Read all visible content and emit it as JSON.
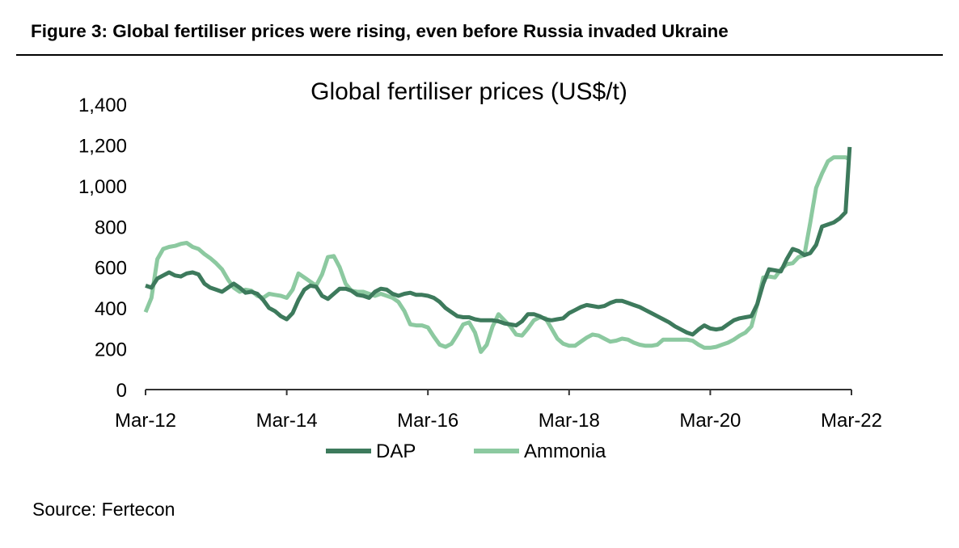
{
  "figure": {
    "title": "Figure 3: Global fertiliser prices were rising, even before Russia invaded Ukraine",
    "source": "Source: Fertecon"
  },
  "chart_data": {
    "type": "line",
    "title": "Global fertiliser prices (US$/t)",
    "xlabel": "",
    "ylabel": "",
    "x_unit": "months since Mar-12",
    "x_range": [
      0,
      120
    ],
    "ylim": [
      0,
      1400
    ],
    "y_ticks": [
      0,
      200,
      400,
      600,
      800,
      1000,
      1200,
      1400
    ],
    "y_tick_labels": [
      "0",
      "200",
      "400",
      "600",
      "800",
      "1,000",
      "1,200",
      "1,400"
    ],
    "x_ticks": [
      0,
      24,
      48,
      72,
      96,
      120
    ],
    "x_tick_labels": [
      "Mar-12",
      "Mar-14",
      "Mar-16",
      "Mar-18",
      "Mar-20",
      "Mar-22"
    ],
    "grid": false,
    "legend_position": "bottom",
    "series": [
      {
        "name": "DAP",
        "color": "#3d7a5c",
        "points": [
          [
            0,
            510
          ],
          [
            1,
            500
          ],
          [
            2,
            545
          ],
          [
            3,
            560
          ],
          [
            4,
            575
          ],
          [
            5,
            560
          ],
          [
            6,
            555
          ],
          [
            7,
            570
          ],
          [
            8,
            575
          ],
          [
            9,
            565
          ],
          [
            10,
            520
          ],
          [
            11,
            500
          ],
          [
            12,
            490
          ],
          [
            13,
            480
          ],
          [
            14,
            500
          ],
          [
            15,
            520
          ],
          [
            16,
            500
          ],
          [
            17,
            475
          ],
          [
            18,
            480
          ],
          [
            19,
            470
          ],
          [
            20,
            440
          ],
          [
            21,
            400
          ],
          [
            22,
            385
          ],
          [
            23,
            360
          ],
          [
            24,
            345
          ],
          [
            25,
            375
          ],
          [
            26,
            440
          ],
          [
            27,
            490
          ],
          [
            28,
            510
          ],
          [
            29,
            505
          ],
          [
            30,
            460
          ],
          [
            31,
            445
          ],
          [
            32,
            470
          ],
          [
            33,
            495
          ],
          [
            34,
            495
          ],
          [
            35,
            485
          ],
          [
            36,
            465
          ],
          [
            37,
            460
          ],
          [
            38,
            450
          ],
          [
            39,
            480
          ],
          [
            40,
            495
          ],
          [
            41,
            490
          ],
          [
            42,
            470
          ],
          [
            43,
            460
          ],
          [
            44,
            470
          ],
          [
            45,
            475
          ],
          [
            46,
            465
          ],
          [
            47,
            465
          ],
          [
            48,
            460
          ],
          [
            49,
            450
          ],
          [
            50,
            430
          ],
          [
            51,
            400
          ],
          [
            52,
            380
          ],
          [
            53,
            360
          ],
          [
            54,
            355
          ],
          [
            55,
            355
          ],
          [
            56,
            345
          ],
          [
            57,
            340
          ],
          [
            58,
            340
          ],
          [
            59,
            340
          ],
          [
            60,
            335
          ],
          [
            61,
            325
          ],
          [
            62,
            320
          ],
          [
            63,
            315
          ],
          [
            64,
            335
          ],
          [
            65,
            370
          ],
          [
            66,
            370
          ],
          [
            67,
            360
          ],
          [
            68,
            345
          ],
          [
            69,
            340
          ],
          [
            70,
            345
          ],
          [
            71,
            350
          ],
          [
            72,
            375
          ],
          [
            73,
            390
          ],
          [
            74,
            405
          ],
          [
            75,
            415
          ],
          [
            76,
            410
          ],
          [
            77,
            405
          ],
          [
            78,
            410
          ],
          [
            79,
            425
          ],
          [
            80,
            435
          ],
          [
            81,
            435
          ],
          [
            82,
            425
          ],
          [
            83,
            415
          ],
          [
            84,
            405
          ],
          [
            85,
            390
          ],
          [
            86,
            375
          ],
          [
            87,
            360
          ],
          [
            88,
            345
          ],
          [
            89,
            330
          ],
          [
            90,
            310
          ],
          [
            91,
            295
          ],
          [
            92,
            280
          ],
          [
            93,
            270
          ],
          [
            94,
            295
          ],
          [
            95,
            315
          ],
          [
            96,
            300
          ],
          [
            97,
            295
          ],
          [
            98,
            300
          ],
          [
            99,
            320
          ],
          [
            100,
            340
          ],
          [
            101,
            350
          ],
          [
            102,
            355
          ],
          [
            103,
            360
          ],
          [
            104,
            420
          ],
          [
            105,
            520
          ],
          [
            106,
            590
          ],
          [
            107,
            585
          ],
          [
            108,
            580
          ],
          [
            109,
            640
          ],
          [
            110,
            690
          ],
          [
            111,
            680
          ],
          [
            112,
            660
          ],
          [
            113,
            670
          ],
          [
            114,
            710
          ],
          [
            115,
            800
          ],
          [
            116,
            810
          ],
          [
            117,
            820
          ],
          [
            118,
            840
          ],
          [
            119,
            870
          ],
          [
            119.7,
            1190
          ]
        ]
      },
      {
        "name": "Ammonia",
        "color": "#8cc9a0",
        "points": [
          [
            0,
            380
          ],
          [
            1,
            450
          ],
          [
            2,
            640
          ],
          [
            3,
            690
          ],
          [
            4,
            700
          ],
          [
            5,
            705
          ],
          [
            6,
            715
          ],
          [
            7,
            720
          ],
          [
            8,
            700
          ],
          [
            9,
            690
          ],
          [
            10,
            665
          ],
          [
            11,
            645
          ],
          [
            12,
            620
          ],
          [
            13,
            590
          ],
          [
            14,
            540
          ],
          [
            15,
            500
          ],
          [
            16,
            480
          ],
          [
            17,
            490
          ],
          [
            18,
            485
          ],
          [
            19,
            460
          ],
          [
            20,
            450
          ],
          [
            21,
            470
          ],
          [
            22,
            465
          ],
          [
            23,
            460
          ],
          [
            24,
            450
          ],
          [
            25,
            490
          ],
          [
            26,
            570
          ],
          [
            27,
            550
          ],
          [
            28,
            530
          ],
          [
            29,
            510
          ],
          [
            30,
            565
          ],
          [
            31,
            650
          ],
          [
            32,
            655
          ],
          [
            33,
            600
          ],
          [
            34,
            520
          ],
          [
            35,
            485
          ],
          [
            36,
            480
          ],
          [
            37,
            480
          ],
          [
            38,
            470
          ],
          [
            39,
            460
          ],
          [
            40,
            470
          ],
          [
            41,
            460
          ],
          [
            42,
            450
          ],
          [
            43,
            430
          ],
          [
            44,
            385
          ],
          [
            45,
            320
          ],
          [
            46,
            315
          ],
          [
            47,
            315
          ],
          [
            48,
            305
          ],
          [
            49,
            260
          ],
          [
            50,
            220
          ],
          [
            51,
            210
          ],
          [
            52,
            225
          ],
          [
            53,
            270
          ],
          [
            54,
            320
          ],
          [
            55,
            330
          ],
          [
            56,
            280
          ],
          [
            57,
            185
          ],
          [
            58,
            220
          ],
          [
            59,
            310
          ],
          [
            60,
            370
          ],
          [
            61,
            340
          ],
          [
            62,
            310
          ],
          [
            63,
            270
          ],
          [
            64,
            265
          ],
          [
            65,
            300
          ],
          [
            66,
            340
          ],
          [
            67,
            355
          ],
          [
            68,
            350
          ],
          [
            69,
            300
          ],
          [
            70,
            250
          ],
          [
            71,
            225
          ],
          [
            72,
            215
          ],
          [
            73,
            215
          ],
          [
            74,
            235
          ],
          [
            75,
            255
          ],
          [
            76,
            270
          ],
          [
            77,
            265
          ],
          [
            78,
            250
          ],
          [
            79,
            235
          ],
          [
            80,
            240
          ],
          [
            81,
            250
          ],
          [
            82,
            245
          ],
          [
            83,
            230
          ],
          [
            84,
            220
          ],
          [
            85,
            215
          ],
          [
            86,
            215
          ],
          [
            87,
            220
          ],
          [
            88,
            245
          ],
          [
            89,
            245
          ],
          [
            90,
            245
          ],
          [
            91,
            245
          ],
          [
            92,
            245
          ],
          [
            93,
            240
          ],
          [
            94,
            220
          ],
          [
            95,
            205
          ],
          [
            96,
            205
          ],
          [
            97,
            210
          ],
          [
            98,
            220
          ],
          [
            99,
            230
          ],
          [
            100,
            245
          ],
          [
            101,
            265
          ],
          [
            102,
            280
          ],
          [
            103,
            310
          ],
          [
            104,
            420
          ],
          [
            105,
            550
          ],
          [
            106,
            555
          ],
          [
            107,
            550
          ],
          [
            108,
            590
          ],
          [
            109,
            615
          ],
          [
            110,
            620
          ],
          [
            111,
            650
          ],
          [
            112,
            660
          ],
          [
            113,
            820
          ],
          [
            114,
            990
          ],
          [
            115,
            1060
          ],
          [
            116,
            1120
          ],
          [
            117,
            1140
          ],
          [
            118,
            1140
          ],
          [
            119,
            1140
          ],
          [
            119.7,
            1130
          ]
        ]
      }
    ]
  }
}
